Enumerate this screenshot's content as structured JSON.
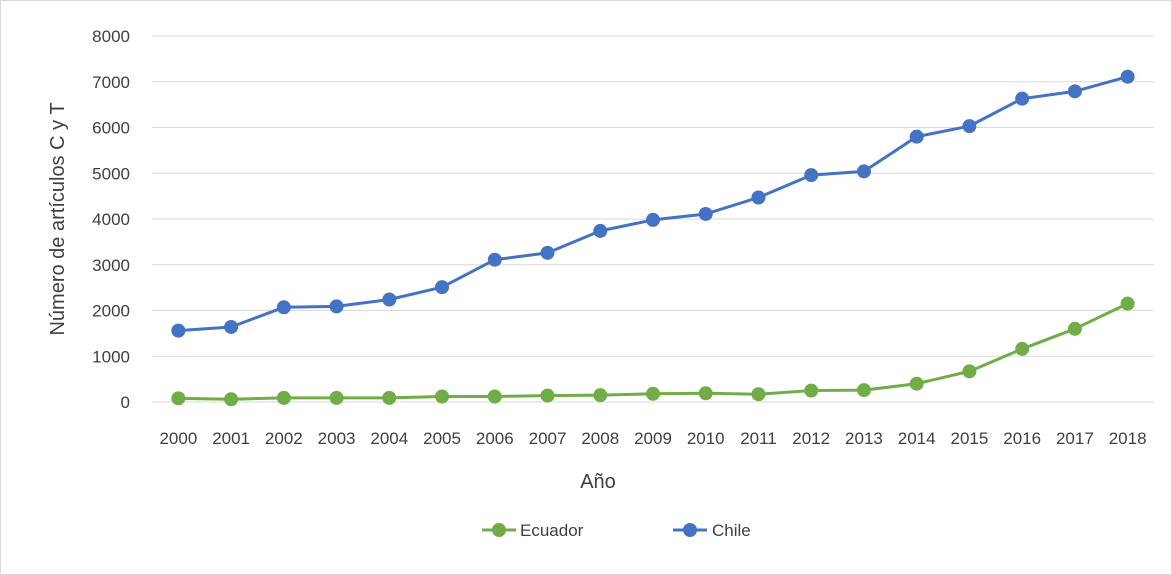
{
  "chart_data": {
    "type": "line",
    "title": "",
    "xlabel": "Año",
    "ylabel": "Número de artículos C y T",
    "ylim": [
      0,
      8000
    ],
    "yticks": [
      "0",
      "1000",
      "2000",
      "3000",
      "4000",
      "5000",
      "6000",
      "7000",
      "8000"
    ],
    "grid": true,
    "legend_position": "bottom",
    "categories": [
      "2000",
      "2001",
      "2002",
      "2003",
      "2004",
      "2005",
      "2006",
      "2007",
      "2008",
      "2009",
      "2010",
      "2011",
      "2012",
      "2013",
      "2014",
      "2015",
      "2016",
      "2017",
      "2018"
    ],
    "series": [
      {
        "name": "Ecuador",
        "color": "#70ad47",
        "values": [
          80,
          60,
          90,
          90,
          90,
          120,
          120,
          140,
          150,
          180,
          190,
          170,
          250,
          260,
          400,
          670,
          1160,
          1600,
          2150
        ]
      },
      {
        "name": "Chile",
        "color": "#4472c4",
        "values": [
          1560,
          1640,
          2070,
          2090,
          2240,
          2510,
          3110,
          3260,
          3740,
          3980,
          4110,
          4470,
          4960,
          5040,
          5800,
          6030,
          6630,
          6790,
          7110
        ]
      }
    ]
  }
}
